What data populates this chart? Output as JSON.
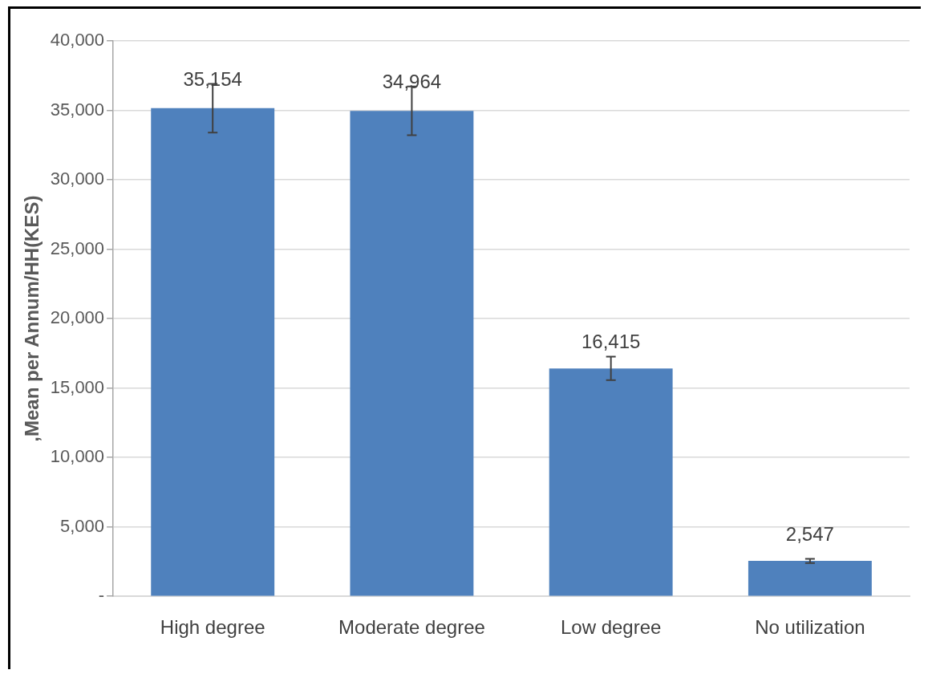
{
  "chart_data": {
    "type": "bar",
    "ylabel": ",Mean per Annum/HH(KES)",
    "categories": [
      "High degree",
      "Moderate degree",
      "Low degree",
      "No utilization"
    ],
    "values": [
      35154,
      34964,
      16415,
      2547
    ],
    "value_labels": [
      "35,154",
      "34,964",
      "16,415",
      "2,547"
    ],
    "errors": [
      1750,
      1750,
      850,
      150
    ],
    "color": "#4f81bd",
    "ylim": [
      0,
      40000
    ],
    "yticks": [
      {
        "value": 0,
        "label": "-"
      },
      {
        "value": 5000,
        "label": "5,000"
      },
      {
        "value": 10000,
        "label": "10,000"
      },
      {
        "value": 15000,
        "label": "15,000"
      },
      {
        "value": 20000,
        "label": "20,000"
      },
      {
        "value": 25000,
        "label": "25,000"
      },
      {
        "value": 30000,
        "label": "30,000"
      },
      {
        "value": 35000,
        "label": "35,000"
      },
      {
        "value": 40000,
        "label": "40,000"
      }
    ],
    "grid": "y",
    "legend": false
  }
}
